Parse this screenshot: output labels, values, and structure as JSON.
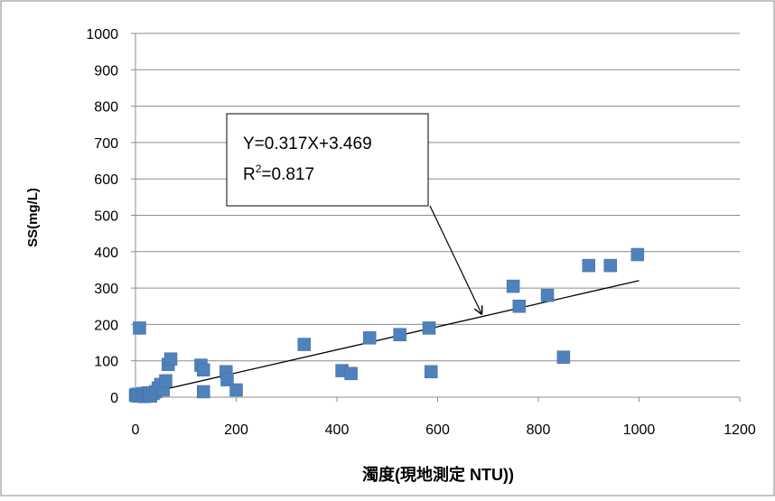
{
  "chart_data": {
    "type": "scatter",
    "xlabel": "濁度(現地測定 NTU))",
    "ylabel": "SS(mg/L)",
    "xlim": [
      0,
      1200
    ],
    "ylim": [
      0,
      1000
    ],
    "x_ticks": [
      0,
      200,
      400,
      600,
      800,
      1000,
      1200
    ],
    "y_ticks": [
      0,
      100,
      200,
      300,
      400,
      500,
      600,
      700,
      800,
      900,
      1000
    ],
    "grid": "horizontal",
    "marker_color": "#4f81bd",
    "points": [
      {
        "x": 0,
        "y": 5
      },
      {
        "x": 3,
        "y": 8
      },
      {
        "x": 5,
        "y": 3
      },
      {
        "x": 8,
        "y": 190
      },
      {
        "x": 12,
        "y": 3
      },
      {
        "x": 15,
        "y": 10
      },
      {
        "x": 18,
        "y": 2
      },
      {
        "x": 22,
        "y": 5
      },
      {
        "x": 25,
        "y": 12
      },
      {
        "x": 28,
        "y": 8
      },
      {
        "x": 30,
        "y": 3
      },
      {
        "x": 35,
        "y": 10
      },
      {
        "x": 40,
        "y": 15
      },
      {
        "x": 45,
        "y": 25
      },
      {
        "x": 50,
        "y": 35
      },
      {
        "x": 55,
        "y": 20
      },
      {
        "x": 60,
        "y": 45
      },
      {
        "x": 65,
        "y": 90
      },
      {
        "x": 70,
        "y": 105
      },
      {
        "x": 130,
        "y": 88
      },
      {
        "x": 135,
        "y": 75
      },
      {
        "x": 135,
        "y": 15
      },
      {
        "x": 180,
        "y": 70
      },
      {
        "x": 182,
        "y": 48
      },
      {
        "x": 200,
        "y": 20
      },
      {
        "x": 335,
        "y": 145
      },
      {
        "x": 410,
        "y": 73
      },
      {
        "x": 428,
        "y": 65
      },
      {
        "x": 465,
        "y": 163
      },
      {
        "x": 525,
        "y": 172
      },
      {
        "x": 583,
        "y": 190
      },
      {
        "x": 587,
        "y": 70
      },
      {
        "x": 750,
        "y": 305
      },
      {
        "x": 762,
        "y": 250
      },
      {
        "x": 818,
        "y": 280
      },
      {
        "x": 850,
        "y": 110
      },
      {
        "x": 900,
        "y": 362
      },
      {
        "x": 943,
        "y": 362
      },
      {
        "x": 997,
        "y": 392
      }
    ],
    "trendline": {
      "slope": 0.317,
      "intercept": 3.469,
      "x_range": [
        0,
        1000
      ]
    },
    "annotation": {
      "equation": "Y=0.317X+3.469",
      "r2_prefix": "R",
      "r2_sup": "2",
      "r2_value": "=0.817",
      "arrow_target": {
        "x": 688,
        "y": 222
      }
    }
  }
}
